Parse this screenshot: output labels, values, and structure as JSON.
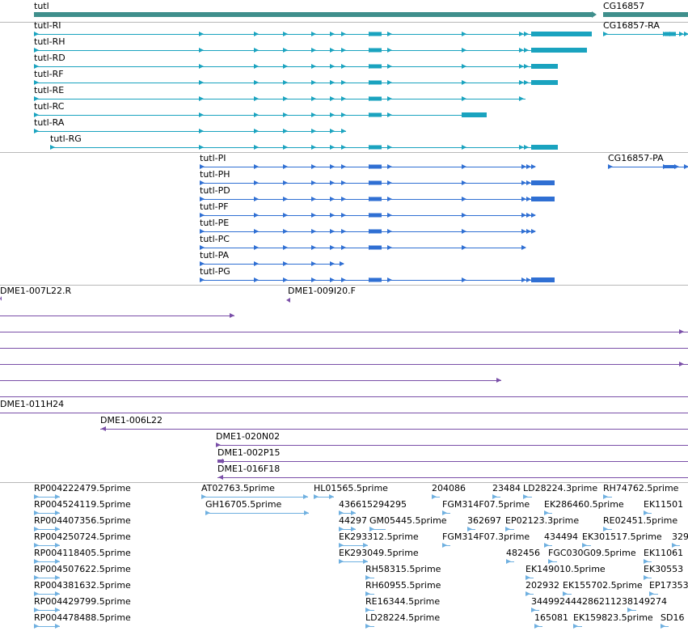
{
  "colors": {
    "gene": "#3f8f8c",
    "transcript": "#1aa3bf",
    "protein": "#2f6fd3",
    "clone": "#7a4fa8",
    "est": "#6fb0e0",
    "separator": "#b8b8b8"
  },
  "gene_track": {
    "label": "tutl",
    "items": [
      {
        "name": "tutl"
      },
      {
        "name": "CG16857"
      }
    ]
  },
  "transcript_track": {
    "items": [
      {
        "name": "tutl-RI"
      },
      {
        "name": "tutl-RH"
      },
      {
        "name": "tutl-RD"
      },
      {
        "name": "tutl-RF"
      },
      {
        "name": "tutl-RE"
      },
      {
        "name": "tutl-RC"
      },
      {
        "name": "tutl-RA"
      },
      {
        "name": "tutl-RG"
      },
      {
        "name": "CG16857-RA"
      }
    ]
  },
  "protein_track": {
    "items": [
      {
        "name": "tutl-PI"
      },
      {
        "name": "tutl-PH"
      },
      {
        "name": "tutl-PD"
      },
      {
        "name": "tutl-PF"
      },
      {
        "name": "tutl-PE"
      },
      {
        "name": "tutl-PC"
      },
      {
        "name": "tutl-PA"
      },
      {
        "name": "tutl-PG"
      },
      {
        "name": "CG16857-PA"
      }
    ]
  },
  "clone_track": {
    "items": [
      {
        "name": "DME1-007L22.R"
      },
      {
        "name": "DME1-009I20.F"
      },
      {
        "name": "DME1-011H24"
      },
      {
        "name": "DME1-006L22"
      },
      {
        "name": "DME1-020N02"
      },
      {
        "name": "DME1-002P15"
      },
      {
        "name": "DME1-016F18"
      }
    ]
  },
  "est_track": {
    "items": [
      {
        "name": "RP004222479.5prime"
      },
      {
        "name": "RP004524119.5prime"
      },
      {
        "name": "RP004407356.5prime"
      },
      {
        "name": "RP004250724.5prime"
      },
      {
        "name": "RP004118405.5prime"
      },
      {
        "name": "RP004507622.5prime"
      },
      {
        "name": "RP004381632.5prime"
      },
      {
        "name": "RP004429799.5prime"
      },
      {
        "name": "RP004478488.5prime"
      },
      {
        "name": "AT02763.5prime"
      },
      {
        "name": "GH16705.5prime"
      },
      {
        "name": "HL01565.5prime"
      },
      {
        "name": "436615294295"
      },
      {
        "name": "44297"
      },
      {
        "name": "GM05445.5prime"
      },
      {
        "name": "EK293312.5prime"
      },
      {
        "name": "EK293049.5prime"
      },
      {
        "name": "RH58315.5prime"
      },
      {
        "name": "RH60955.5prime"
      },
      {
        "name": "RE16344.5prime"
      },
      {
        "name": "LD28224.5prime"
      },
      {
        "name": "204086"
      },
      {
        "name": "FGM314F07.5prime"
      },
      {
        "name": "FGM314F07.3prime"
      },
      {
        "name": "23484"
      },
      {
        "name": "LD28224.3prime"
      },
      {
        "name": "RH74762.5prime"
      },
      {
        "name": "EK286460.5prime"
      },
      {
        "name": "EK11501"
      },
      {
        "name": "362697"
      },
      {
        "name": "EP02123.3prime"
      },
      {
        "name": "RE02451.5prime"
      },
      {
        "name": "434494"
      },
      {
        "name": "EK301517.5prime"
      },
      {
        "name": "329"
      },
      {
        "name": "482456"
      },
      {
        "name": "FGC030G09.5prime"
      },
      {
        "name": "EK11061"
      },
      {
        "name": "EK149010.5prime"
      },
      {
        "name": "EK30553"
      },
      {
        "name": "202932"
      },
      {
        "name": "EK155702.5prime"
      },
      {
        "name": "EP17353"
      },
      {
        "name": "34499244428621123"
      },
      {
        "name": "8149274"
      },
      {
        "name": "165081"
      },
      {
        "name": "EK159823.5prime"
      },
      {
        "name": "SD16"
      }
    ]
  }
}
